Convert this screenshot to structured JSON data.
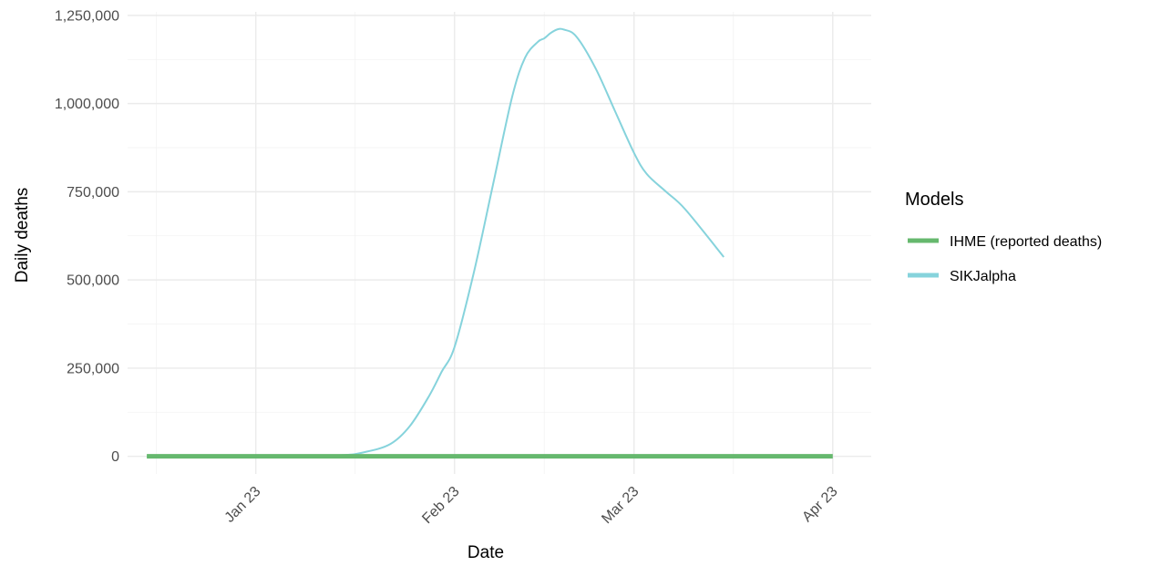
{
  "chart_data": {
    "type": "line",
    "xlabel": "Date",
    "ylabel": "Daily deaths",
    "ylim": [
      -50000,
      1260000
    ],
    "y_ticks": [
      0,
      250000,
      500000,
      750000,
      1000000,
      1250000
    ],
    "y_tick_labels": [
      "0",
      "250,000",
      "500,000",
      "750,000",
      "1,000,000",
      "1,250,000"
    ],
    "x_ticks": [
      "2023-01-23",
      "2023-02-23",
      "2023-03-23",
      "2023-04-23"
    ],
    "x_tick_labels": [
      "Jan 23",
      "Feb 23",
      "Mar 23",
      "Apr 23"
    ],
    "xlim": [
      "2023-01-03",
      "2023-04-29"
    ],
    "grid": true,
    "legend": {
      "title": "Models",
      "placement": "right"
    },
    "series": [
      {
        "name": "IHME (reported deaths)",
        "color": "#66b86e",
        "x": [
          "2023-01-06",
          "2023-04-23"
        ],
        "y": [
          0,
          0
        ]
      },
      {
        "name": "SIKJalpha",
        "color": "#86d3dc",
        "x": [
          "2023-01-06",
          "2023-01-23",
          "2023-02-05",
          "2023-02-09",
          "2023-02-13",
          "2023-02-16",
          "2023-02-19",
          "2023-02-21",
          "2023-02-23",
          "2023-02-26",
          "2023-03-01",
          "2023-03-04",
          "2023-03-06",
          "2023-03-08",
          "2023-03-09",
          "2023-03-10",
          "2023-03-11",
          "2023-03-12",
          "2023-03-14",
          "2023-03-17",
          "2023-03-20",
          "2023-03-23",
          "2023-03-25",
          "2023-03-28",
          "2023-03-31",
          "2023-04-06"
        ],
        "y": [
          0,
          100,
          3000,
          12000,
          35000,
          85000,
          170000,
          240000,
          310000,
          520000,
          770000,
          1020000,
          1130000,
          1175000,
          1185000,
          1200000,
          1210000,
          1210000,
          1190000,
          1100000,
          980000,
          860000,
          800000,
          750000,
          700000,
          565000
        ]
      }
    ]
  }
}
